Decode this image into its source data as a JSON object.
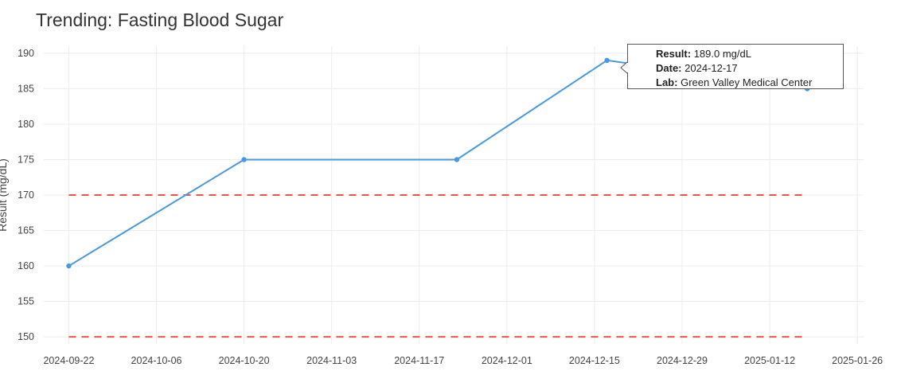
{
  "title": "Trending: Fasting Blood Sugar",
  "chart_data": {
    "type": "line",
    "title": "Trending: Fasting Blood Sugar",
    "xlabel": "",
    "ylabel": "Result (mg/dL)",
    "x_ticks": [
      "2024-09-22",
      "2024-10-06",
      "2024-10-20",
      "2024-11-03",
      "2024-11-17",
      "2024-12-01",
      "2024-12-15",
      "2024-12-29",
      "2025-01-12",
      "2025-01-26"
    ],
    "y_ticks": [
      150,
      155,
      160,
      165,
      170,
      175,
      180,
      185,
      190
    ],
    "xlim": [
      "2024-09-18",
      "2025-01-27"
    ],
    "ylim": [
      149,
      191
    ],
    "grid": true,
    "series": [
      {
        "color": "#4a98e0",
        "points": [
          {
            "date": "2024-09-22",
            "value": 160
          },
          {
            "date": "2024-10-20",
            "value": 175
          },
          {
            "date": "2024-11-23",
            "value": 175
          },
          {
            "date": "2024-12-17",
            "value": 189
          },
          {
            "date": "2025-01-18",
            "value": 185
          }
        ]
      }
    ],
    "reference_lines": [
      {
        "value": 170,
        "color": "#e8554a",
        "style": "dashed"
      },
      {
        "value": 150,
        "color": "#e8554a",
        "style": "dashed"
      }
    ],
    "ref_line_range": [
      "2024-09-22",
      "2025-01-18"
    ]
  },
  "tooltip": {
    "result_label": "Result:",
    "result_value": "189.0 mg/dL",
    "date_label": "Date:",
    "date_value": "2024-12-17",
    "lab_label": "Lab:",
    "lab_value": "Green Valley Medical Center"
  }
}
